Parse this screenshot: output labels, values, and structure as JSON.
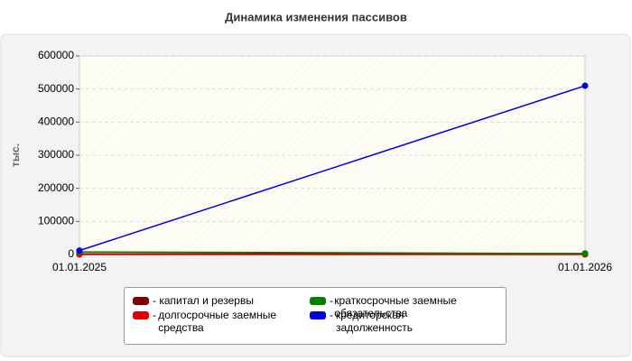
{
  "chart_data": {
    "type": "line",
    "title": "Динамика изменения пассивов",
    "y_label": "тыс.",
    "categories": [
      "01.01.2025",
      "01.01.2026"
    ],
    "series": [
      {
        "name": "капитал и резервы",
        "color": "#800000",
        "values": [
          2000,
          3000
        ]
      },
      {
        "name": "долгосрочные заемные средства",
        "color": "#e00000",
        "values": [
          0,
          0
        ]
      },
      {
        "name": "краткосрочные заемные обязательства",
        "color": "#008000",
        "values": [
          8000,
          3000
        ]
      },
      {
        "name": "кредиторская задолженность",
        "color": "#0000e0",
        "values": [
          12000,
          510000
        ]
      }
    ],
    "ylim": [
      0,
      600000
    ],
    "yticks": [
      0,
      100000,
      200000,
      300000,
      400000,
      500000,
      600000
    ],
    "grid": true
  }
}
